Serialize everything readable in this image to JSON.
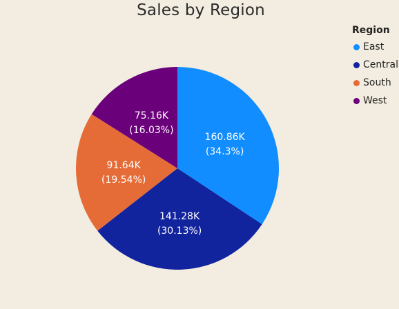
{
  "chart_data": {
    "type": "pie",
    "title": "Sales by Region",
    "legend_title": "Region",
    "legend_position": "right",
    "slices": [
      {
        "name": "East",
        "value": 160.86,
        "value_label": "160.86K",
        "percent_label": "(34.3%)",
        "color": "#118dff"
      },
      {
        "name": "Central",
        "value": 141.28,
        "value_label": "141.28K",
        "percent_label": "(30.13%)",
        "color": "#12239e"
      },
      {
        "name": "South",
        "value": 91.64,
        "value_label": "91.64K",
        "percent_label": "(19.54%)",
        "color": "#e66c37"
      },
      {
        "name": "West",
        "value": 75.16,
        "value_label": "75.16K",
        "percent_label": "(16.03%)",
        "color": "#6b007b"
      }
    ]
  }
}
